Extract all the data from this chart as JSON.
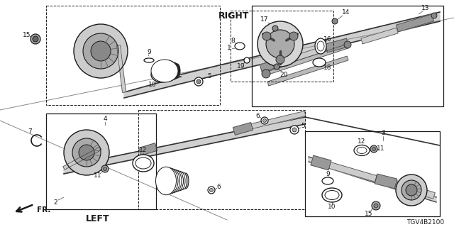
{
  "bg_color": "#ffffff",
  "diagram_code": "TGV4B2100",
  "right_label": "RIGHT",
  "left_label": "LEFT",
  "fr_label": "FR.",
  "lc": "#1a1a1a",
  "gray": "#666666",
  "dgray": "#333333"
}
